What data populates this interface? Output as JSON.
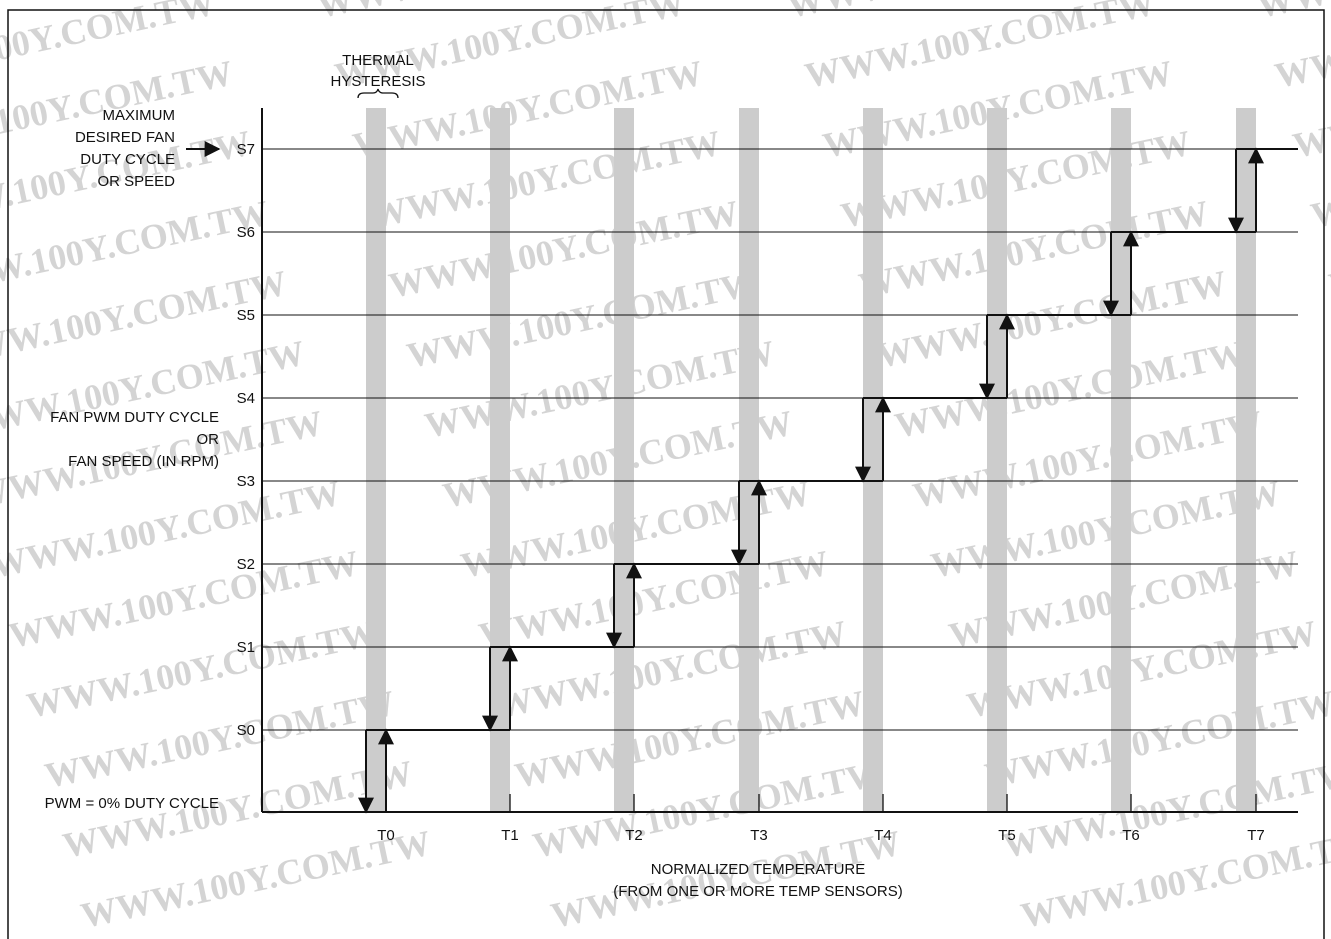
{
  "watermark": {
    "text": "WWW.100Y.COM.TW",
    "color": "#d4d4d4"
  },
  "annotations": {
    "thermal_hysteresis": [
      "THERMAL",
      "HYSTERESIS"
    ],
    "max_fan": [
      "MAXIMUM",
      "DESIRED FAN",
      "DUTY CYCLE",
      "OR SPEED"
    ],
    "y_axis": [
      "FAN PWM DUTY CYCLE",
      "OR",
      "FAN SPEED (IN RPM)"
    ],
    "pwm_zero": "PWM = 0% DUTY CYCLE",
    "x_axis": [
      "NORMALIZED TEMPERATURE",
      "(FROM ONE OR MORE TEMP SENSORS)"
    ]
  },
  "speed_levels": [
    "S0",
    "S1",
    "S2",
    "S3",
    "S4",
    "S5",
    "S6",
    "S7"
  ],
  "temperature_thresholds": [
    "T0",
    "T1",
    "T2",
    "T3",
    "T4",
    "T5",
    "T6",
    "T7"
  ],
  "colors": {
    "hysteresis_band": "#cccccc",
    "line": "#111111",
    "grid": "#111111"
  }
}
